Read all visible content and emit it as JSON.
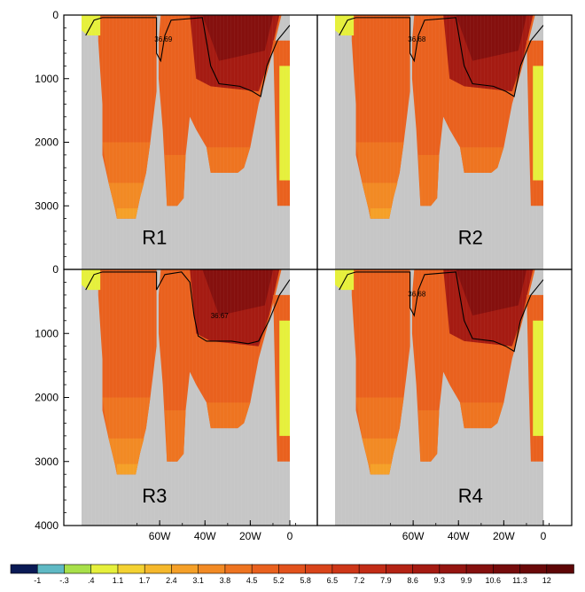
{
  "chart_data": [
    {
      "type": "heatmap",
      "panel_label": "R1",
      "x_ticks": [
        "60W",
        "40W",
        "20W",
        "0"
      ],
      "y_ticks": [
        "0",
        "1000",
        "2000",
        "3000",
        "4000"
      ],
      "contour_label": "36.69"
    },
    {
      "type": "heatmap",
      "panel_label": "R2",
      "x_ticks": [
        "60W",
        "40W",
        "20W",
        "0"
      ],
      "y_ticks": [
        "0",
        "1000",
        "2000",
        "3000",
        "4000"
      ],
      "contour_label": "36.68"
    },
    {
      "type": "heatmap",
      "panel_label": "R3",
      "x_ticks": [
        "60W",
        "40W",
        "20W",
        "0"
      ],
      "y_ticks": [
        "0",
        "1000",
        "2000",
        "3000",
        "4000"
      ],
      "contour_label": "36.67"
    },
    {
      "type": "heatmap",
      "panel_label": "R4",
      "x_ticks": [
        "60W",
        "40W",
        "20W",
        "0"
      ],
      "y_ticks": [
        "0",
        "1000",
        "2000",
        "3000",
        "4000"
      ],
      "contour_label": "36.68"
    }
  ],
  "colorbar": {
    "labels": [
      "-1",
      "-.3",
      ".4",
      "1.1",
      "1.7",
      "2.4",
      "3.1",
      "3.8",
      "4.5",
      "5.2",
      "5.8",
      "6.5",
      "7.2",
      "7.9",
      "8.6",
      "9.3",
      "9.9",
      "10.6",
      "11.3",
      "12"
    ],
    "colors": [
      "#0a1a55",
      "#5fb9c4",
      "#a8e04a",
      "#e6f03c",
      "#f4d232",
      "#f5b82c",
      "#f5a028",
      "#f28a24",
      "#ee7420",
      "#e9611e",
      "#e2521c",
      "#d9441a",
      "#ce3718",
      "#c22c16",
      "#b42314",
      "#a51b12",
      "#951510",
      "#85100e",
      "#760c0c",
      "#6a0909",
      "#5e0606"
    ]
  },
  "colors": {
    "land": "#c6c6c6",
    "background": "#ffffff"
  }
}
